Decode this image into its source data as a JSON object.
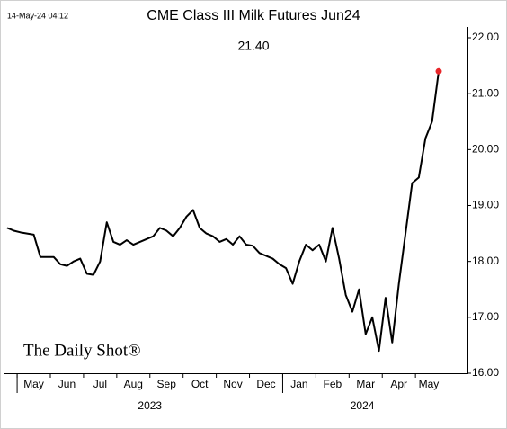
{
  "chart_data": {
    "type": "line",
    "title": "CME Class III Milk Futures Jun24",
    "timestamp": "14-May-24 04:12",
    "annotation": "21.40",
    "watermark": "The Daily Shot®",
    "categories": [
      null,
      null,
      "May",
      null,
      null,
      null,
      null,
      "Jun",
      null,
      null,
      null,
      null,
      "Jul",
      null,
      null,
      null,
      null,
      "Aug",
      null,
      null,
      null,
      null,
      "Sep",
      null,
      null,
      null,
      null,
      "Oct",
      null,
      null,
      null,
      null,
      "Nov",
      null,
      null,
      null,
      null,
      "Dec",
      null,
      null,
      null,
      null,
      "Jan",
      null,
      null,
      null,
      null,
      "Feb",
      null,
      null,
      null,
      null,
      "Mar",
      null,
      null,
      null,
      null,
      "Apr",
      null,
      null,
      null,
      null,
      "May",
      null,
      null,
      null
    ],
    "years": [
      null,
      null,
      "2023",
      null,
      null,
      null,
      null,
      null,
      null,
      null,
      null,
      null,
      null,
      null,
      null,
      null,
      null,
      null,
      null,
      null,
      null,
      null,
      null,
      null,
      null,
      null,
      null,
      null,
      null,
      null,
      null,
      null,
      null,
      null,
      null,
      null,
      null,
      null,
      null,
      null,
      null,
      null,
      "2024",
      null,
      null,
      null,
      null,
      null,
      null,
      null,
      null,
      null,
      null,
      null,
      null,
      null,
      null,
      null,
      null,
      null,
      null,
      null,
      null,
      null,
      null,
      null
    ],
    "series": [
      {
        "name": "CME Class III Milk Futures Jun24",
        "color": "#000000",
        "values": [
          18.6,
          18.55,
          18.52,
          18.5,
          18.48,
          18.08,
          18.08,
          18.08,
          17.95,
          17.92,
          18.0,
          18.05,
          17.78,
          17.76,
          18.0,
          18.7,
          18.35,
          18.3,
          18.38,
          18.3,
          18.35,
          18.4,
          18.45,
          18.6,
          18.55,
          18.45,
          18.6,
          18.8,
          18.92,
          18.6,
          18.5,
          18.45,
          18.35,
          18.4,
          18.3,
          18.45,
          18.3,
          18.28,
          18.15,
          18.1,
          18.05,
          17.95,
          17.88,
          17.6,
          18.0,
          18.3,
          18.2,
          18.3,
          18.0,
          18.6,
          18.05,
          17.4,
          17.1,
          17.5,
          16.7,
          17.0,
          16.4,
          17.35,
          16.55,
          17.6,
          18.5,
          19.4,
          19.5,
          20.2,
          20.5,
          21.4
        ]
      }
    ],
    "last_point_color": "#e8262a",
    "ylim": [
      16,
      22
    ],
    "yticks": [
      {
        "value": 16,
        "label": "16.00"
      },
      {
        "value": 17,
        "label": "17.00"
      },
      {
        "value": 18,
        "label": "18.00"
      },
      {
        "value": 19,
        "label": "19.00"
      },
      {
        "value": 20,
        "label": "20.00"
      },
      {
        "value": 21,
        "label": "21.00"
      },
      {
        "value": 22,
        "label": "22.00"
      }
    ],
    "grid": false
  }
}
